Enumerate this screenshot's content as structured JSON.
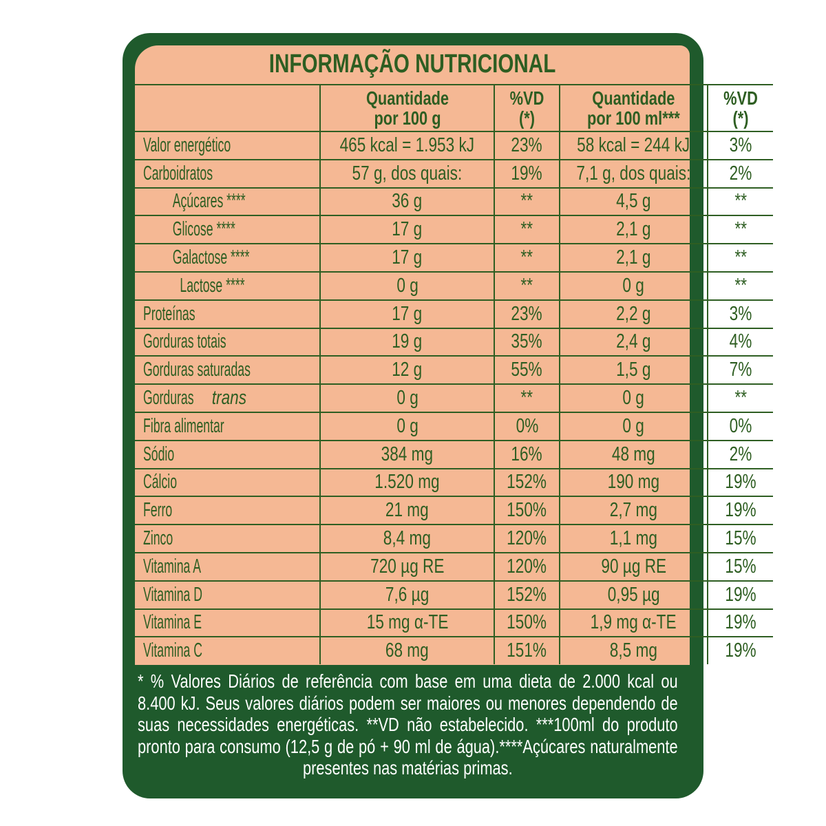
{
  "header": {
    "title": "INFORMAÇÃO NUTRICIONAL"
  },
  "table": {
    "columns": [
      "Quantidade\npor 100 g",
      "%VD (*)",
      "Quantidade\npor 100 ml***",
      "%VD (*)"
    ],
    "rows": [
      {
        "label": "Valor energético",
        "cells": [
          "465 kcal = 1.953 kJ",
          "23%",
          "58 kcal = 244 kJ",
          "3%"
        ]
      },
      {
        "label": "Carboidratos",
        "cells": [
          "57 g, dos quais:",
          "19%",
          "7,1 g, dos quais:",
          "2%"
        ]
      },
      {
        "label": "Açúcares ****",
        "cells": [
          "36 g",
          "**",
          "4,5 g",
          "**"
        ]
      },
      {
        "label": "Glicose ****",
        "cells": [
          "17 g",
          "**",
          "2,1 g",
          "**"
        ]
      },
      {
        "label": "Galactose ****",
        "cells": [
          "17 g",
          "**",
          "2,1 g",
          "**"
        ]
      },
      {
        "label": "Lactose ****",
        "cells": [
          "0 g",
          "**",
          "0 g",
          "**"
        ]
      },
      {
        "label": "Proteínas",
        "cells": [
          "17 g",
          "23%",
          "2,2 g",
          "3%"
        ]
      },
      {
        "label": "Gorduras totais",
        "cells": [
          "19 g",
          "35%",
          "2,4 g",
          "4%"
        ]
      },
      {
        "label": "Gorduras saturadas",
        "cells": [
          "12 g",
          "55%",
          "1,5 g",
          "7%"
        ]
      },
      {
        "label": "Gorduras",
        "label_italic": "trans",
        "cells": [
          "0 g",
          "**",
          "0 g",
          "**"
        ]
      },
      {
        "label": "Fibra alimentar",
        "cells": [
          "0 g",
          "0%",
          "0 g",
          "0%"
        ]
      },
      {
        "label": "Sódio",
        "cells": [
          "384 mg",
          "16%",
          "48 mg",
          "2%"
        ]
      },
      {
        "label": "Cálcio",
        "cells": [
          "1.520 mg",
          "152%",
          "190 mg",
          "19%"
        ]
      },
      {
        "label": "Ferro",
        "cells": [
          "21 mg",
          "150%",
          "2,7 mg",
          "19%"
        ]
      },
      {
        "label": "Zinco",
        "cells": [
          "8,4 mg",
          "120%",
          "1,1 mg",
          "15%"
        ]
      },
      {
        "label": "Vitamina A",
        "cells": [
          "720 µg RE",
          "120%",
          "90 µg RE",
          "15%"
        ]
      },
      {
        "label": "Vitamina D",
        "cells": [
          "7,6 µg",
          "152%",
          "0,95 µg",
          "19%"
        ]
      },
      {
        "label": "Vitamina E",
        "cells": [
          "15 mg α-TE",
          "150%",
          "1,9 mg α-TE",
          "19%"
        ]
      },
      {
        "label": "Vitamina C",
        "cells": [
          "68 mg",
          "151%",
          "8,5 mg",
          "19%"
        ]
      }
    ]
  },
  "footnote": "* % Valores Diários de referência com base em uma dieta de 2.000 kcal ou 8.400 kJ. Seus valores diários podem ser maiores ou menores dependendo de suas necessidades energéticas. **VD não estabelecido. ***100ml do produto pronto para consumo (12,5 g de pó + 90 ml de água).****Açúcares naturalmente presentes nas matérias primas."
}
